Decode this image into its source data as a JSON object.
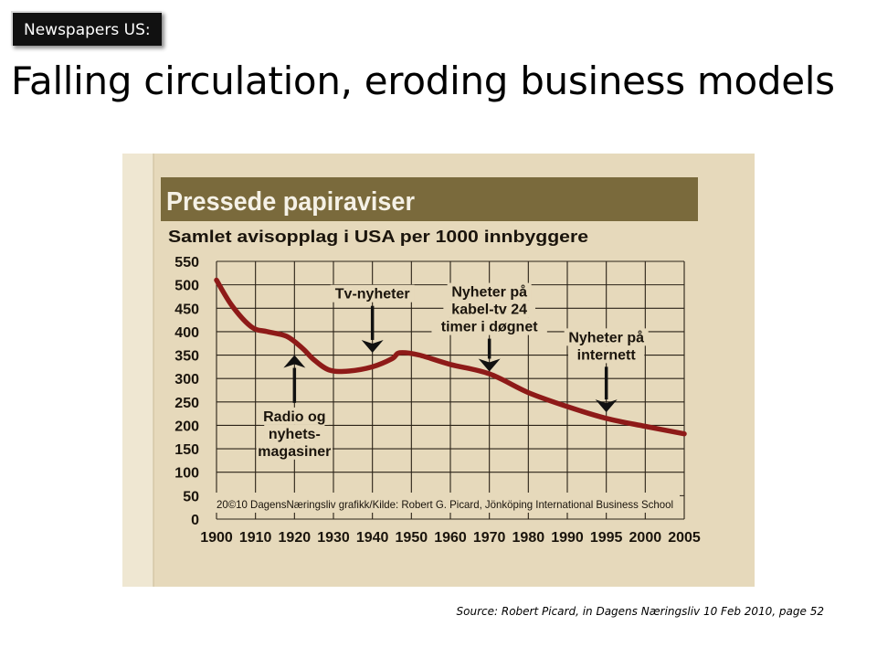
{
  "slide": {
    "tag": "Newspapers US:",
    "title": "Falling circulation, eroding business models",
    "source": "Source: Robert Picard, in Dagens Næringsliv 10 Feb 2010, page 52"
  },
  "chart_data": {
    "type": "line",
    "title": "Pressede papiraviser",
    "subtitle": "Samlet avisopplag i USA per 1000 innbyggere",
    "credit": "20©10 DagensNæringsliv grafikk/Kilde: Robert G. Picard, Jönköping International Business School",
    "x_categories": [
      "1900",
      "1910",
      "1920",
      "1930",
      "1940",
      "1950",
      "1960",
      "1970",
      "1980",
      "1990",
      "1995",
      "2000",
      "2005"
    ],
    "y_ticks": [
      "550",
      "500",
      "450",
      "400",
      "350",
      "300",
      "250",
      "200",
      "150",
      "100",
      "50",
      "0"
    ],
    "ylim": [
      0,
      550
    ],
    "grid": true,
    "series": [
      {
        "color": "#8e1a18",
        "points": [
          {
            "x": 1900,
            "y": 510
          },
          {
            "x": 1904,
            "y": 455
          },
          {
            "x": 1909,
            "y": 410
          },
          {
            "x": 1913,
            "y": 400
          },
          {
            "x": 1918,
            "y": 390
          },
          {
            "x": 1922,
            "y": 365
          },
          {
            "x": 1925,
            "y": 340
          },
          {
            "x": 1929,
            "y": 318
          },
          {
            "x": 1934,
            "y": 316
          },
          {
            "x": 1940,
            "y": 325
          },
          {
            "x": 1945,
            "y": 342
          },
          {
            "x": 1947,
            "y": 355
          },
          {
            "x": 1952,
            "y": 350
          },
          {
            "x": 1960,
            "y": 330
          },
          {
            "x": 1970,
            "y": 310
          },
          {
            "x": 1980,
            "y": 270
          },
          {
            "x": 1990,
            "y": 240
          },
          {
            "x": 1995,
            "y": 215
          },
          {
            "x": 2000,
            "y": 198
          },
          {
            "x": 2005,
            "y": 182
          }
        ]
      }
    ],
    "annotations": [
      {
        "lines": [
          "Radio og",
          "nyhets-",
          "magasiner"
        ],
        "x": 1920,
        "arrow_tip_y": 350,
        "arrow_tail_y": 248,
        "direction": "up"
      },
      {
        "lines": [
          "Tv-nyheter"
        ],
        "x": 1940,
        "arrow_tip_y": 355,
        "arrow_tail_y": 455,
        "direction": "down"
      },
      {
        "lines": [
          "Nyheter på",
          "kabel-tv 24",
          "timer i døgnet"
        ],
        "x": 1970,
        "arrow_tip_y": 315,
        "arrow_tail_y": 385,
        "direction": "down"
      },
      {
        "lines": [
          "Nyheter på",
          "internett"
        ],
        "x": 1995,
        "arrow_tip_y": 228,
        "arrow_tail_y": 325,
        "direction": "down"
      }
    ],
    "colors": {
      "paper": "#e6d9bb",
      "band": "#7a6a3c",
      "band_text": "#f5f1e6",
      "grid": "#2a2217",
      "text": "#1a140c"
    }
  }
}
